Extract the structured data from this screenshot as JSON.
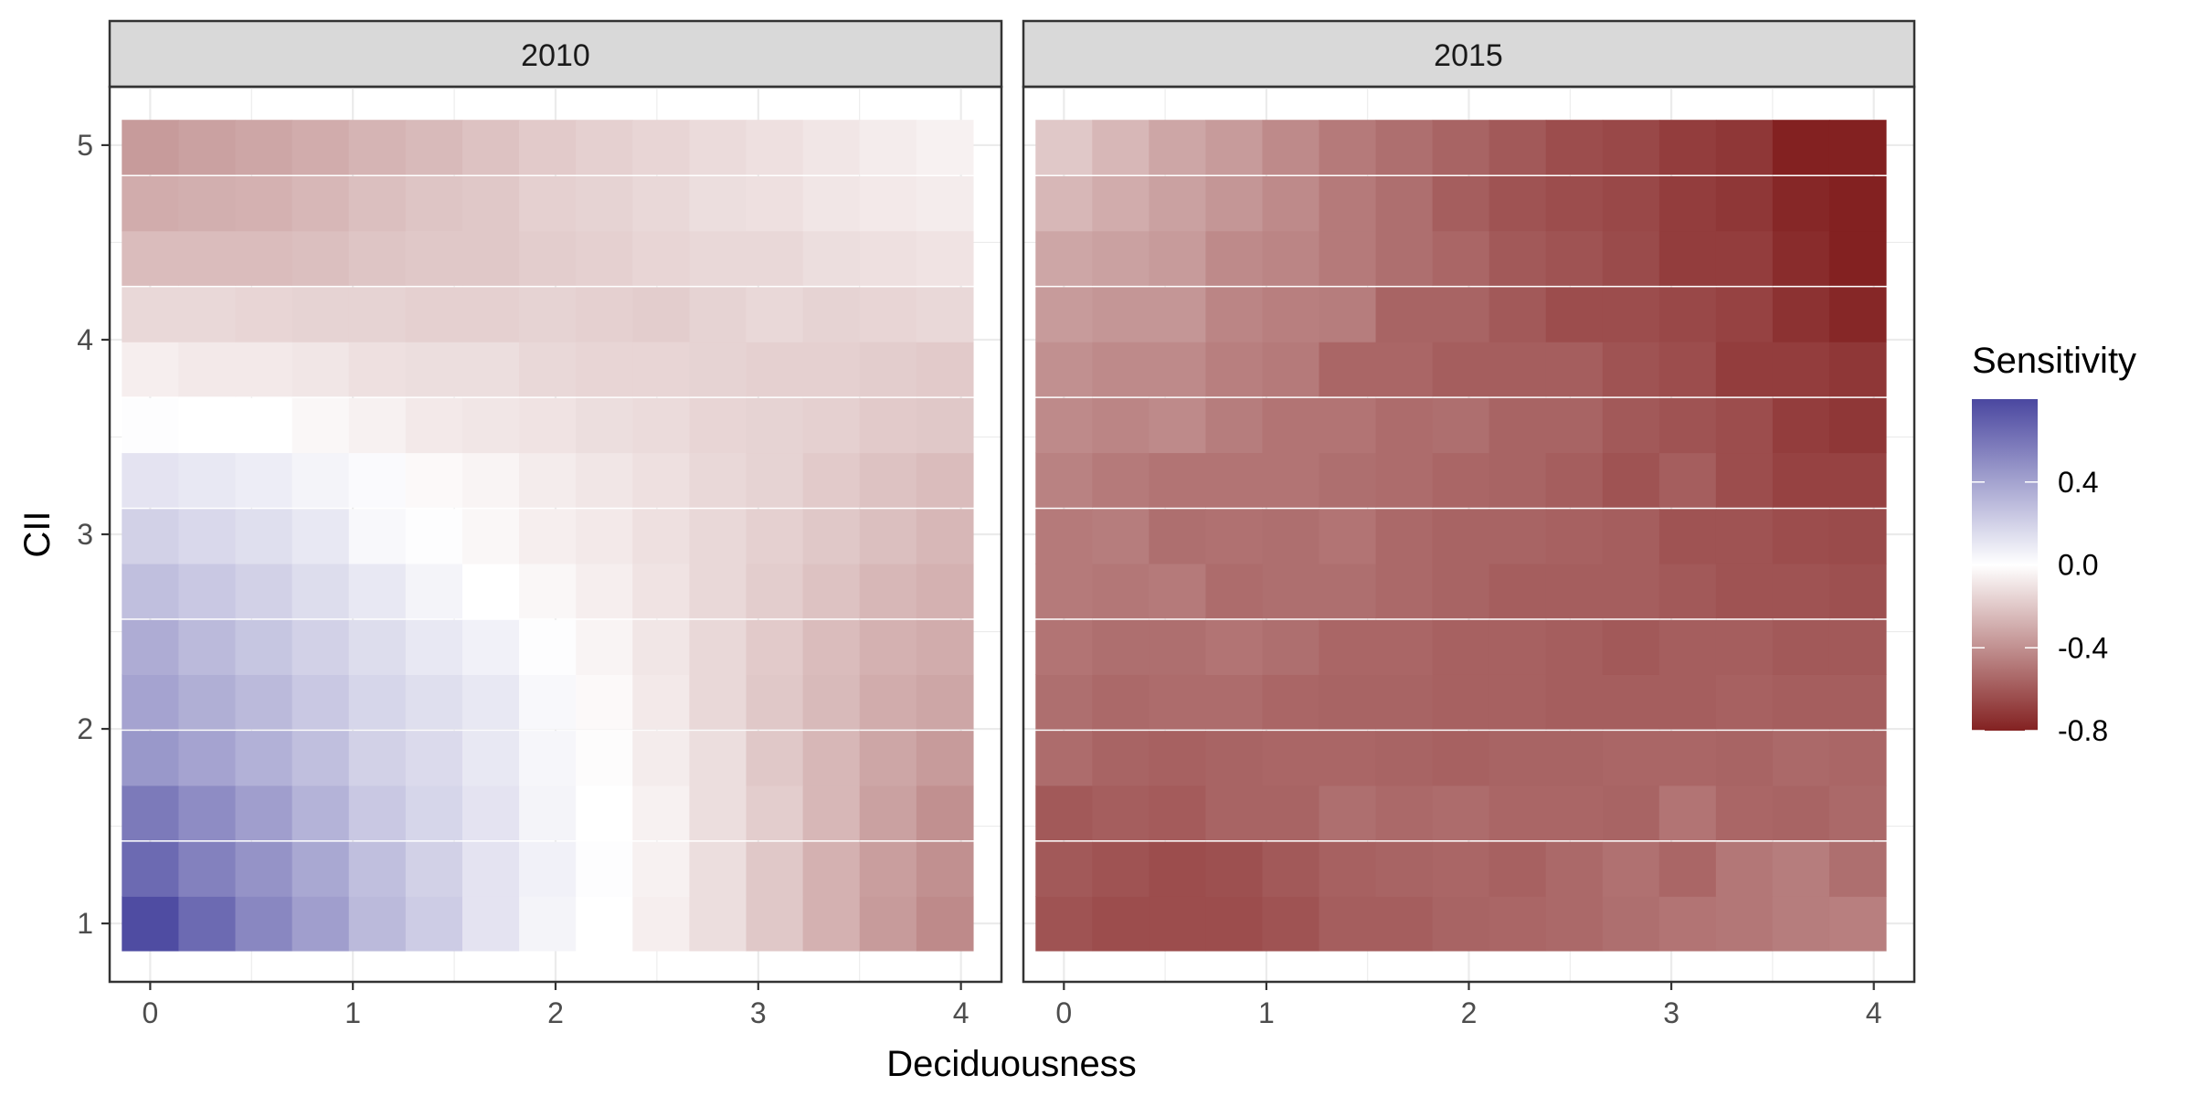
{
  "chart_data": {
    "type": "heatmap",
    "xlabel": "Deciduousness",
    "ylabel": "CII",
    "x_ticks": [
      "0",
      "1",
      "2",
      "3",
      "4"
    ],
    "y_ticks": [
      "1",
      "2",
      "3",
      "4",
      "5"
    ],
    "xlim": [
      -0.2,
      4.2
    ],
    "ylim": [
      0.7,
      5.3
    ],
    "grid": true,
    "x_centers": [
      0,
      0.28,
      0.56,
      0.84,
      1.12,
      1.4,
      1.68,
      1.96,
      2.24,
      2.52,
      2.8,
      3.08,
      3.36,
      3.64,
      3.92
    ],
    "y_centers": [
      1.0,
      1.28,
      1.57,
      1.85,
      2.14,
      2.42,
      2.71,
      2.99,
      3.28,
      3.56,
      3.85,
      4.13,
      4.42,
      4.7,
      4.99
    ],
    "legend": {
      "title": "Sensitivity",
      "position": "right",
      "range": [
        -0.8,
        0.8
      ],
      "ticks": [
        "0.4",
        "0.0",
        "-0.4",
        "-0.8"
      ],
      "colors": {
        "low": "#832121",
        "mid": "#ffffff",
        "high": "#4a47a0"
      }
    },
    "panels": [
      {
        "strip_label": "2010",
        "z": [
          [
            0.78,
            0.65,
            0.52,
            0.42,
            0.3,
            0.22,
            0.12,
            0.05,
            0.0,
            -0.06,
            -0.12,
            -0.2,
            -0.28,
            -0.36,
            -0.42
          ],
          [
            0.65,
            0.55,
            0.47,
            0.38,
            0.28,
            0.2,
            0.12,
            0.06,
            0.01,
            -0.05,
            -0.12,
            -0.2,
            -0.28,
            -0.35,
            -0.4
          ],
          [
            0.58,
            0.5,
            0.42,
            0.33,
            0.24,
            0.18,
            0.12,
            0.05,
            0.0,
            -0.05,
            -0.12,
            -0.18,
            -0.26,
            -0.34,
            -0.4
          ],
          [
            0.45,
            0.4,
            0.34,
            0.28,
            0.2,
            0.16,
            0.1,
            0.04,
            -0.01,
            -0.07,
            -0.12,
            -0.2,
            -0.26,
            -0.32,
            -0.36
          ],
          [
            0.4,
            0.35,
            0.3,
            0.24,
            0.18,
            0.14,
            0.1,
            0.03,
            -0.02,
            -0.08,
            -0.14,
            -0.2,
            -0.25,
            -0.3,
            -0.32
          ],
          [
            0.36,
            0.3,
            0.25,
            0.2,
            0.15,
            0.1,
            0.06,
            0.01,
            -0.04,
            -0.09,
            -0.14,
            -0.19,
            -0.24,
            -0.28,
            -0.3
          ],
          [
            0.28,
            0.24,
            0.2,
            0.15,
            0.1,
            0.05,
            0.0,
            -0.03,
            -0.06,
            -0.1,
            -0.14,
            -0.18,
            -0.22,
            -0.26,
            -0.28
          ],
          [
            0.2,
            0.17,
            0.14,
            0.1,
            0.03,
            0.01,
            -0.03,
            -0.06,
            -0.08,
            -0.11,
            -0.14,
            -0.17,
            -0.2,
            -0.23,
            -0.26
          ],
          [
            0.12,
            0.1,
            0.08,
            0.05,
            0.02,
            -0.02,
            -0.04,
            -0.07,
            -0.09,
            -0.11,
            -0.14,
            -0.16,
            -0.19,
            -0.22,
            -0.24
          ],
          [
            0.01,
            0.0,
            0.0,
            -0.03,
            -0.05,
            -0.08,
            -0.09,
            -0.1,
            -0.12,
            -0.13,
            -0.15,
            -0.16,
            -0.17,
            -0.19,
            -0.2
          ],
          [
            -0.06,
            -0.08,
            -0.08,
            -0.09,
            -0.11,
            -0.12,
            -0.12,
            -0.14,
            -0.15,
            -0.15,
            -0.16,
            -0.17,
            -0.17,
            -0.18,
            -0.19
          ],
          [
            -0.14,
            -0.14,
            -0.15,
            -0.16,
            -0.16,
            -0.17,
            -0.17,
            -0.16,
            -0.17,
            -0.18,
            -0.16,
            -0.14,
            -0.16,
            -0.15,
            -0.14
          ],
          [
            -0.24,
            -0.24,
            -0.24,
            -0.23,
            -0.21,
            -0.2,
            -0.2,
            -0.18,
            -0.17,
            -0.15,
            -0.14,
            -0.14,
            -0.12,
            -0.11,
            -0.1
          ],
          [
            -0.3,
            -0.29,
            -0.28,
            -0.26,
            -0.23,
            -0.21,
            -0.2,
            -0.17,
            -0.16,
            -0.14,
            -0.12,
            -0.11,
            -0.09,
            -0.08,
            -0.07
          ],
          [
            -0.36,
            -0.34,
            -0.32,
            -0.3,
            -0.27,
            -0.25,
            -0.22,
            -0.19,
            -0.17,
            -0.15,
            -0.13,
            -0.11,
            -0.09,
            -0.07,
            -0.05
          ]
        ]
      },
      {
        "strip_label": "2015",
        "z": [
          [
            -0.62,
            -0.64,
            -0.64,
            -0.64,
            -0.62,
            -0.58,
            -0.58,
            -0.56,
            -0.55,
            -0.54,
            -0.52,
            -0.5,
            -0.49,
            -0.47,
            -0.46
          ],
          [
            -0.6,
            -0.62,
            -0.64,
            -0.63,
            -0.6,
            -0.57,
            -0.56,
            -0.55,
            -0.57,
            -0.54,
            -0.51,
            -0.55,
            -0.49,
            -0.47,
            -0.52
          ],
          [
            -0.6,
            -0.58,
            -0.59,
            -0.56,
            -0.56,
            -0.52,
            -0.54,
            -0.53,
            -0.55,
            -0.55,
            -0.56,
            -0.5,
            -0.55,
            -0.56,
            -0.54
          ],
          [
            -0.53,
            -0.56,
            -0.57,
            -0.56,
            -0.55,
            -0.55,
            -0.56,
            -0.57,
            -0.56,
            -0.56,
            -0.55,
            -0.55,
            -0.56,
            -0.54,
            -0.55
          ],
          [
            -0.52,
            -0.54,
            -0.53,
            -0.53,
            -0.55,
            -0.56,
            -0.56,
            -0.57,
            -0.57,
            -0.58,
            -0.58,
            -0.58,
            -0.57,
            -0.58,
            -0.58
          ],
          [
            -0.5,
            -0.52,
            -0.52,
            -0.5,
            -0.52,
            -0.55,
            -0.55,
            -0.57,
            -0.57,
            -0.58,
            -0.6,
            -0.58,
            -0.58,
            -0.6,
            -0.6
          ],
          [
            -0.48,
            -0.49,
            -0.48,
            -0.53,
            -0.52,
            -0.52,
            -0.54,
            -0.56,
            -0.58,
            -0.58,
            -0.58,
            -0.6,
            -0.62,
            -0.62,
            -0.63
          ],
          [
            -0.48,
            -0.47,
            -0.52,
            -0.51,
            -0.52,
            -0.5,
            -0.54,
            -0.56,
            -0.56,
            -0.57,
            -0.58,
            -0.62,
            -0.62,
            -0.64,
            -0.65
          ],
          [
            -0.45,
            -0.48,
            -0.5,
            -0.5,
            -0.5,
            -0.52,
            -0.53,
            -0.55,
            -0.56,
            -0.58,
            -0.62,
            -0.58,
            -0.64,
            -0.68,
            -0.68
          ],
          [
            -0.42,
            -0.44,
            -0.42,
            -0.47,
            -0.5,
            -0.5,
            -0.53,
            -0.52,
            -0.56,
            -0.56,
            -0.6,
            -0.62,
            -0.64,
            -0.7,
            -0.72
          ],
          [
            -0.4,
            -0.42,
            -0.42,
            -0.46,
            -0.48,
            -0.55,
            -0.55,
            -0.58,
            -0.58,
            -0.58,
            -0.62,
            -0.64,
            -0.7,
            -0.7,
            -0.72
          ],
          [
            -0.36,
            -0.38,
            -0.38,
            -0.44,
            -0.46,
            -0.47,
            -0.56,
            -0.56,
            -0.6,
            -0.64,
            -0.64,
            -0.66,
            -0.68,
            -0.74,
            -0.78
          ],
          [
            -0.32,
            -0.34,
            -0.36,
            -0.42,
            -0.44,
            -0.48,
            -0.52,
            -0.55,
            -0.6,
            -0.62,
            -0.65,
            -0.7,
            -0.7,
            -0.76,
            -0.8
          ],
          [
            -0.26,
            -0.3,
            -0.34,
            -0.38,
            -0.42,
            -0.48,
            -0.52,
            -0.58,
            -0.62,
            -0.64,
            -0.66,
            -0.7,
            -0.72,
            -0.78,
            -0.8
          ],
          [
            -0.2,
            -0.26,
            -0.32,
            -0.36,
            -0.42,
            -0.48,
            -0.52,
            -0.56,
            -0.6,
            -0.64,
            -0.66,
            -0.7,
            -0.72,
            -0.8,
            -0.82
          ]
        ]
      }
    ]
  }
}
